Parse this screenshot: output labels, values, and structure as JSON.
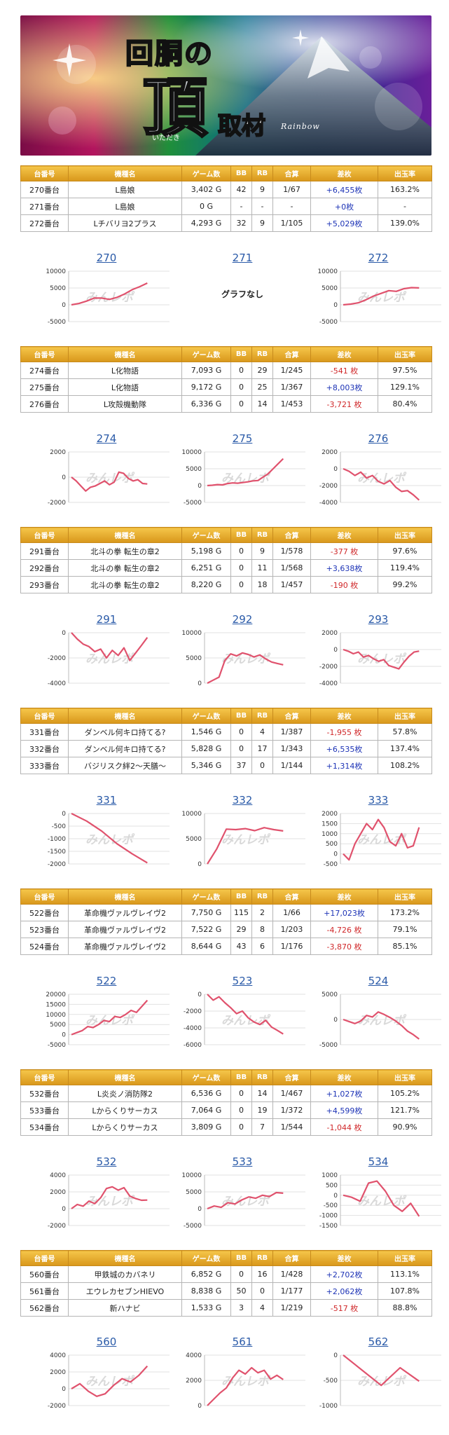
{
  "banner": {
    "title_main": "回胴の",
    "title_big": "頂",
    "title_sub": "取材",
    "ruby": "いただき",
    "shop": "Rainbow"
  },
  "table_headers": [
    "台番号",
    "機種名",
    "ゲーム数",
    "BB",
    "RB",
    "合算",
    "差枚",
    "出玉率"
  ],
  "watermark": "みんレポ",
  "colors": {
    "line": "#e0526d",
    "positive": "#1d33b6",
    "negative": "#d0282a",
    "header": "#e6a82a",
    "title_link": "#2a5aa8"
  },
  "sections": [
    {
      "rows": [
        {
          "unit": "270番台",
          "machine": "L島娘",
          "games": "3,402 G",
          "bb": "42",
          "rb": "9",
          "total": "1/67",
          "diff": "+6,455枚",
          "rate": "163.2%",
          "sign": "pos"
        },
        {
          "unit": "271番台",
          "machine": "L島娘",
          "games": "0 G",
          "bb": "-",
          "rb": "-",
          "total": "-",
          "diff": "+0枚",
          "rate": "-",
          "sign": "pos"
        },
        {
          "unit": "272番台",
          "machine": "Lチバリヨ2プラス",
          "games": "4,293 G",
          "bb": "32",
          "rb": "9",
          "total": "1/105",
          "diff": "+5,029枚",
          "rate": "139.0%",
          "sign": "pos"
        }
      ],
      "charts": [
        {
          "title": "270",
          "ticks": [
            "10000",
            "5000",
            "0",
            "-5000"
          ],
          "ymin": -5000,
          "ymax": 10000,
          "values": [
            0,
            400,
            1100,
            2000,
            2000,
            1600,
            2200,
            3200,
            4500,
            5400,
            6455
          ]
        },
        {
          "title": "271",
          "no_data": "グラフなし"
        },
        {
          "title": "272",
          "ticks": [
            "10000",
            "5000",
            "0",
            "-5000"
          ],
          "ymin": -5000,
          "ymax": 10000,
          "values": [
            0,
            200,
            600,
            1500,
            2600,
            3400,
            4200,
            4000,
            4800,
            5100,
            5029
          ]
        }
      ]
    },
    {
      "rows": [
        {
          "unit": "274番台",
          "machine": "L化物語",
          "games": "7,093 G",
          "bb": "0",
          "rb": "29",
          "total": "1/245",
          "diff": "-541 枚",
          "rate": "97.5%",
          "sign": "neg"
        },
        {
          "unit": "275番台",
          "machine": "L化物語",
          "games": "9,172 G",
          "bb": "0",
          "rb": "25",
          "total": "1/367",
          "diff": "+8,003枚",
          "rate": "129.1%",
          "sign": "pos"
        },
        {
          "unit": "276番台",
          "machine": "L攻殻機動隊",
          "games": "6,336 G",
          "bb": "0",
          "rb": "14",
          "total": "1/453",
          "diff": "-3,721 枚",
          "rate": "80.4%",
          "sign": "neg"
        }
      ],
      "charts": [
        {
          "title": "274",
          "ticks": [
            "2000",
            "0",
            "-2000"
          ],
          "ymin": -2000,
          "ymax": 2000,
          "values": [
            0,
            -300,
            -700,
            -1100,
            -800,
            -700,
            -500,
            -300,
            -600,
            -400,
            400,
            300,
            -100,
            -300,
            -200,
            -500,
            -541
          ]
        },
        {
          "title": "275",
          "ticks": [
            "10000",
            "5000",
            "0",
            "-5000"
          ],
          "ymin": -5000,
          "ymax": 10000,
          "values": [
            0,
            100,
            300,
            200,
            600,
            800,
            700,
            900,
            1100,
            1400,
            1500,
            2500,
            3500,
            5000,
            6500,
            8003
          ]
        },
        {
          "title": "276",
          "ticks": [
            "2000",
            "0",
            "-2000",
            "-4000"
          ],
          "ymin": -4000,
          "ymax": 2000,
          "values": [
            0,
            -300,
            -800,
            -400,
            -1100,
            -800,
            -1500,
            -1800,
            -1400,
            -2200,
            -2700,
            -2600,
            -3100,
            -3721
          ]
        }
      ]
    },
    {
      "rows": [
        {
          "unit": "291番台",
          "machine": "北斗の拳 転生の章2",
          "games": "5,198 G",
          "bb": "0",
          "rb": "9",
          "total": "1/578",
          "diff": "-377 枚",
          "rate": "97.6%",
          "sign": "neg"
        },
        {
          "unit": "292番台",
          "machine": "北斗の拳 転生の章2",
          "games": "6,251 G",
          "bb": "0",
          "rb": "11",
          "total": "1/568",
          "diff": "+3,638枚",
          "rate": "119.4%",
          "sign": "pos"
        },
        {
          "unit": "293番台",
          "machine": "北斗の拳 転生の章2",
          "games": "8,220 G",
          "bb": "0",
          "rb": "18",
          "total": "1/457",
          "diff": "-190 枚",
          "rate": "99.2%",
          "sign": "neg"
        }
      ],
      "charts": [
        {
          "title": "291",
          "ticks": [
            "0",
            "-2000",
            "-4000"
          ],
          "ymin": -4000,
          "ymax": 0,
          "values": [
            0,
            -500,
            -900,
            -1100,
            -1500,
            -1300,
            -2000,
            -1400,
            -1800,
            -1200,
            -2200,
            -1600,
            -1000,
            -377
          ]
        },
        {
          "title": "292",
          "ticks": [
            "10000",
            "5000",
            "0"
          ],
          "ymin": 0,
          "ymax": 10000,
          "values": [
            0,
            600,
            1200,
            4500,
            5800,
            5400,
            6000,
            5700,
            5200,
            5600,
            4800,
            4200,
            3900,
            3638
          ]
        },
        {
          "title": "293",
          "ticks": [
            "2000",
            "0",
            "-2000",
            "-4000"
          ],
          "ymin": -4000,
          "ymax": 2000,
          "values": [
            0,
            -200,
            -500,
            -300,
            -900,
            -700,
            -1100,
            -1400,
            -1200,
            -1900,
            -2100,
            -2300,
            -1500,
            -800,
            -300,
            -190
          ]
        }
      ]
    },
    {
      "rows": [
        {
          "unit": "331番台",
          "machine": "ダンベル何キロ持てる?",
          "games": "1,546 G",
          "bb": "0",
          "rb": "4",
          "total": "1/387",
          "diff": "-1,955 枚",
          "rate": "57.8%",
          "sign": "neg"
        },
        {
          "unit": "332番台",
          "machine": "ダンベル何キロ持てる?",
          "games": "5,828 G",
          "bb": "0",
          "rb": "17",
          "total": "1/343",
          "diff": "+6,535枚",
          "rate": "137.4%",
          "sign": "pos"
        },
        {
          "unit": "333番台",
          "machine": "バジリスク絆2〜天膳〜",
          "games": "5,346 G",
          "bb": "37",
          "rb": "0",
          "total": "1/144",
          "diff": "+1,314枚",
          "rate": "108.2%",
          "sign": "pos"
        }
      ],
      "charts": [
        {
          "title": "331",
          "ticks": [
            "0",
            "-500",
            "-1000",
            "-1500",
            "-2000"
          ],
          "ymin": -2000,
          "ymax": 0,
          "values": [
            0,
            -300,
            -700,
            -1200,
            -1600,
            -1955
          ]
        },
        {
          "title": "332",
          "ticks": [
            "10000",
            "5000",
            "0"
          ],
          "ymin": 0,
          "ymax": 10000,
          "values": [
            0,
            3000,
            6900,
            6800,
            7000,
            6600,
            7200,
            6800,
            6535
          ]
        },
        {
          "title": "333",
          "ticks": [
            "2000",
            "1500",
            "1000",
            "500",
            "0",
            "-500"
          ],
          "ymin": -500,
          "ymax": 2000,
          "values": [
            0,
            -300,
            500,
            1000,
            1500,
            1200,
            1700,
            1300,
            600,
            400,
            1000,
            300,
            400,
            1314
          ]
        }
      ]
    },
    {
      "rows": [
        {
          "unit": "522番台",
          "machine": "革命機ヴァルヴレイヴ2",
          "games": "7,750 G",
          "bb": "115",
          "rb": "2",
          "total": "1/66",
          "diff": "+17,023枚",
          "rate": "173.2%",
          "sign": "pos"
        },
        {
          "unit": "523番台",
          "machine": "革命機ヴァルヴレイヴ2",
          "games": "7,522 G",
          "bb": "29",
          "rb": "8",
          "total": "1/203",
          "diff": "-4,726 枚",
          "rate": "79.1%",
          "sign": "neg"
        },
        {
          "unit": "524番台",
          "machine": "革命機ヴァルヴレイヴ2",
          "games": "8,644 G",
          "bb": "43",
          "rb": "6",
          "total": "1/176",
          "diff": "-3,870 枚",
          "rate": "85.1%",
          "sign": "neg"
        }
      ],
      "charts": [
        {
          "title": "522",
          "ticks": [
            "20000",
            "15000",
            "10000",
            "5000",
            "0",
            "-5000"
          ],
          "ymin": -5000,
          "ymax": 20000,
          "values": [
            0,
            1000,
            2000,
            4000,
            3500,
            5000,
            7000,
            6500,
            9000,
            8500,
            10000,
            12000,
            11000,
            14000,
            17023
          ]
        },
        {
          "title": "523",
          "ticks": [
            "0",
            "-2000",
            "-4000",
            "-6000"
          ],
          "ymin": -6000,
          "ymax": 0,
          "values": [
            0,
            -700,
            -300,
            -1000,
            -1600,
            -2300,
            -2000,
            -2800,
            -3300,
            -3600,
            -3100,
            -3900,
            -4300,
            -4726
          ]
        },
        {
          "title": "524",
          "ticks": [
            "5000",
            "0",
            "-5000"
          ],
          "ymin": -5000,
          "ymax": 5000,
          "values": [
            0,
            -400,
            -800,
            -300,
            800,
            500,
            1500,
            1000,
            400,
            -300,
            -1200,
            -2300,
            -3000,
            -3870
          ]
        }
      ]
    },
    {
      "rows": [
        {
          "unit": "532番台",
          "machine": "L炎炎ノ消防隊2",
          "games": "6,536 G",
          "bb": "0",
          "rb": "14",
          "total": "1/467",
          "diff": "+1,027枚",
          "rate": "105.2%",
          "sign": "pos"
        },
        {
          "unit": "533番台",
          "machine": "Lからくりサーカス",
          "games": "7,064 G",
          "bb": "0",
          "rb": "19",
          "total": "1/372",
          "diff": "+4,599枚",
          "rate": "121.7%",
          "sign": "pos"
        },
        {
          "unit": "534番台",
          "machine": "Lからくりサーカス",
          "games": "3,809 G",
          "bb": "0",
          "rb": "7",
          "total": "1/544",
          "diff": "-1,044 枚",
          "rate": "90.9%",
          "sign": "neg"
        }
      ],
      "charts": [
        {
          "title": "532",
          "ticks": [
            "4000",
            "2000",
            "0",
            "-2000"
          ],
          "ymin": -2000,
          "ymax": 4000,
          "values": [
            0,
            500,
            300,
            900,
            600,
            1300,
            2400,
            2600,
            2200,
            2500,
            1500,
            1200,
            1000,
            1027
          ]
        },
        {
          "title": "533",
          "ticks": [
            "10000",
            "5000",
            "0",
            "-5000"
          ],
          "ymin": -5000,
          "ymax": 10000,
          "values": [
            0,
            800,
            400,
            1800,
            1400,
            2600,
            3500,
            3100,
            4000,
            3600,
            4800,
            4599
          ]
        },
        {
          "title": "534",
          "ticks": [
            "1000",
            "500",
            "0",
            "-500",
            "-1000",
            "-1500"
          ],
          "ymin": -1500,
          "ymax": 1000,
          "values": [
            0,
            -100,
            -300,
            600,
            700,
            200,
            -500,
            -800,
            -400,
            -1044
          ]
        }
      ]
    },
    {
      "rows": [
        {
          "unit": "560番台",
          "machine": "甲鉄城のカバネリ",
          "games": "6,852 G",
          "bb": "0",
          "rb": "16",
          "total": "1/428",
          "diff": "+2,702枚",
          "rate": "113.1%",
          "sign": "pos"
        },
        {
          "unit": "561番台",
          "machine": "エウレカセブンHIEVO",
          "games": "8,838 G",
          "bb": "50",
          "rb": "0",
          "total": "1/177",
          "diff": "+2,062枚",
          "rate": "107.8%",
          "sign": "pos"
        },
        {
          "unit": "562番台",
          "machine": "新ハナビ",
          "games": "1,533 G",
          "bb": "3",
          "rb": "4",
          "total": "1/219",
          "diff": "-517 枚",
          "rate": "88.8%",
          "sign": "neg"
        }
      ],
      "charts": [
        {
          "title": "560",
          "ticks": [
            "4000",
            "2000",
            "0",
            "-2000"
          ],
          "ymin": -2000,
          "ymax": 4000,
          "values": [
            0,
            600,
            -300,
            -900,
            -600,
            400,
            1200,
            800,
            1600,
            2702
          ]
        },
        {
          "title": "561",
          "ticks": [
            "4000",
            "2000",
            "0"
          ],
          "ymin": 0,
          "ymax": 4000,
          "values": [
            0,
            500,
            1000,
            1400,
            2200,
            2800,
            2500,
            3000,
            2600,
            2800,
            2100,
            2400,
            2062
          ]
        },
        {
          "title": "562",
          "ticks": [
            "0",
            "-500",
            "-1000"
          ],
          "ymin": -1000,
          "ymax": 0,
          "values": [
            0,
            -300,
            -600,
            -250,
            -517
          ]
        }
      ]
    }
  ]
}
